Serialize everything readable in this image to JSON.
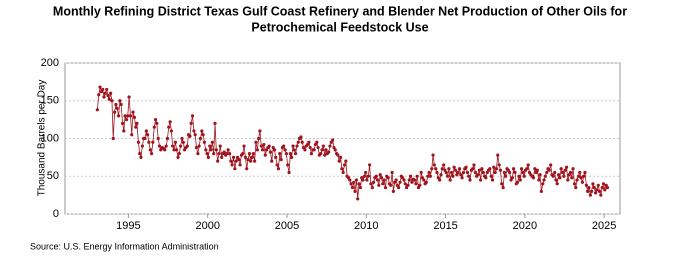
{
  "chart_data": {
    "type": "line",
    "title": [
      "Monthly Refining District Texas Gulf Coast Refinery and Blender Net Production of Other Oils for",
      "Petrochemical Feedstock Use"
    ],
    "ylabel": "Thousand Barrels per Day",
    "source": "Source: U.S. Energy Information Administration",
    "color": "#a0141e",
    "grid": true,
    "xlim": [
      1991,
      2026
    ],
    "xticks": [
      1995,
      2000,
      2005,
      2010,
      2015,
      2020,
      2025
    ],
    "ylim": [
      0,
      200
    ],
    "yticks": [
      0,
      50,
      100,
      150,
      200
    ],
    "x": [
      1993.04,
      1993.13,
      1993.21,
      1993.29,
      1993.38,
      1993.46,
      1993.54,
      1993.63,
      1993.71,
      1993.79,
      1993.88,
      1993.96,
      1994.04,
      1994.13,
      1994.21,
      1994.29,
      1994.38,
      1994.46,
      1994.54,
      1994.63,
      1994.71,
      1994.79,
      1994.88,
      1994.96,
      1995.04,
      1995.13,
      1995.21,
      1995.29,
      1995.38,
      1995.46,
      1995.54,
      1995.63,
      1995.71,
      1995.79,
      1995.88,
      1995.96,
      1996.04,
      1996.13,
      1996.21,
      1996.29,
      1996.38,
      1996.46,
      1996.54,
      1996.63,
      1996.71,
      1996.79,
      1996.88,
      1996.96,
      1997.04,
      1997.13,
      1997.21,
      1997.29,
      1997.38,
      1997.46,
      1997.54,
      1997.63,
      1997.71,
      1997.79,
      1997.88,
      1997.96,
      1998.04,
      1998.13,
      1998.21,
      1998.29,
      1998.38,
      1998.46,
      1998.54,
      1998.63,
      1998.71,
      1998.79,
      1998.88,
      1998.96,
      1999.04,
      1999.13,
      1999.21,
      1999.29,
      1999.38,
      1999.46,
      1999.54,
      1999.63,
      1999.71,
      1999.79,
      1999.88,
      1999.96,
      2000.04,
      2000.13,
      2000.21,
      2000.29,
      2000.38,
      2000.46,
      2000.54,
      2000.63,
      2000.71,
      2000.79,
      2000.88,
      2000.96,
      2001.04,
      2001.13,
      2001.21,
      2001.29,
      2001.38,
      2001.46,
      2001.54,
      2001.63,
      2001.71,
      2001.79,
      2001.88,
      2001.96,
      2002.04,
      2002.13,
      2002.21,
      2002.29,
      2002.38,
      2002.46,
      2002.54,
      2002.63,
      2002.71,
      2002.79,
      2002.88,
      2002.96,
      2003.04,
      2003.13,
      2003.21,
      2003.29,
      2003.38,
      2003.46,
      2003.54,
      2003.63,
      2003.71,
      2003.79,
      2003.88,
      2003.96,
      2004.04,
      2004.13,
      2004.21,
      2004.29,
      2004.38,
      2004.46,
      2004.54,
      2004.63,
      2004.71,
      2004.79,
      2004.88,
      2004.96,
      2005.04,
      2005.13,
      2005.21,
      2005.29,
      2005.38,
      2005.46,
      2005.54,
      2005.63,
      2005.71,
      2005.79,
      2005.88,
      2005.96,
      2006.04,
      2006.13,
      2006.21,
      2006.29,
      2006.38,
      2006.46,
      2006.54,
      2006.63,
      2006.71,
      2006.79,
      2006.88,
      2006.96,
      2007.04,
      2007.13,
      2007.21,
      2007.29,
      2007.38,
      2007.46,
      2007.54,
      2007.63,
      2007.71,
      2007.79,
      2007.88,
      2007.96,
      2008.04,
      2008.13,
      2008.21,
      2008.29,
      2008.38,
      2008.46,
      2008.54,
      2008.63,
      2008.71,
      2008.79,
      2008.88,
      2008.96,
      2009.04,
      2009.13,
      2009.21,
      2009.29,
      2009.38,
      2009.46,
      2009.54,
      2009.63,
      2009.71,
      2009.79,
      2009.88,
      2009.96,
      2010.04,
      2010.13,
      2010.21,
      2010.29,
      2010.38,
      2010.46,
      2010.54,
      2010.63,
      2010.71,
      2010.79,
      2010.88,
      2010.96,
      2011.04,
      2011.13,
      2011.21,
      2011.29,
      2011.38,
      2011.46,
      2011.54,
      2011.63,
      2011.71,
      2011.79,
      2011.88,
      2011.96,
      2012.04,
      2012.13,
      2012.21,
      2012.29,
      2012.38,
      2012.46,
      2012.54,
      2012.63,
      2012.71,
      2012.79,
      2012.88,
      2012.96,
      2013.04,
      2013.13,
      2013.21,
      2013.29,
      2013.38,
      2013.46,
      2013.54,
      2013.63,
      2013.71,
      2013.79,
      2013.88,
      2013.96,
      2014.04,
      2014.13,
      2014.21,
      2014.29,
      2014.38,
      2014.46,
      2014.54,
      2014.63,
      2014.71,
      2014.79,
      2014.88,
      2014.96,
      2015.04,
      2015.13,
      2015.21,
      2015.29,
      2015.38,
      2015.46,
      2015.54,
      2015.63,
      2015.71,
      2015.79,
      2015.88,
      2015.96,
      2016.04,
      2016.13,
      2016.21,
      2016.29,
      2016.38,
      2016.46,
      2016.54,
      2016.63,
      2016.71,
      2016.79,
      2016.88,
      2016.96,
      2017.04,
      2017.13,
      2017.21,
      2017.29,
      2017.38,
      2017.46,
      2017.54,
      2017.63,
      2017.71,
      2017.79,
      2017.88,
      2017.96,
      2018.04,
      2018.13,
      2018.21,
      2018.29,
      2018.38,
      2018.46,
      2018.54,
      2018.63,
      2018.71,
      2018.79,
      2018.88,
      2018.96,
      2019.04,
      2019.13,
      2019.21,
      2019.29,
      2019.38,
      2019.46,
      2019.54,
      2019.63,
      2019.71,
      2019.79,
      2019.88,
      2019.96,
      2020.04,
      2020.13,
      2020.21,
      2020.29,
      2020.38,
      2020.46,
      2020.54,
      2020.63,
      2020.71,
      2020.79,
      2020.88,
      2020.96,
      2021.04,
      2021.13,
      2021.21,
      2021.29,
      2021.38,
      2021.46,
      2021.54,
      2021.63,
      2021.71,
      2021.79,
      2021.88,
      2021.96,
      2022.04,
      2022.13,
      2022.21,
      2022.29,
      2022.38,
      2022.46,
      2022.54,
      2022.63,
      2022.71,
      2022.79,
      2022.88,
      2022.96,
      2023.04,
      2023.13,
      2023.21,
      2023.29,
      2023.38,
      2023.46,
      2023.54,
      2023.63,
      2023.71,
      2023.79,
      2023.88,
      2023.96,
      2024.04,
      2024.13,
      2024.21,
      2024.29,
      2024.38,
      2024.46,
      2024.54,
      2024.63,
      2024.71,
      2024.79,
      2024.88,
      2024.96,
      2025.04,
      2025.13,
      2025.21
    ],
    "values": [
      138,
      158,
      168,
      162,
      165,
      155,
      160,
      165,
      157,
      152,
      160,
      150,
      100,
      135,
      145,
      140,
      130,
      150,
      145,
      120,
      110,
      130,
      125,
      130,
      155,
      130,
      105,
      135,
      128,
      115,
      120,
      95,
      80,
      75,
      90,
      100,
      100,
      110,
      105,
      95,
      85,
      80,
      95,
      115,
      125,
      120,
      100,
      90,
      85,
      88,
      87,
      85,
      90,
      100,
      115,
      122,
      110,
      90,
      85,
      95,
      85,
      75,
      80,
      90,
      100,
      95,
      85,
      88,
      90,
      105,
      103,
      120,
      130,
      110,
      105,
      88,
      80,
      90,
      100,
      110,
      105,
      95,
      85,
      80,
      75,
      90,
      85,
      95,
      80,
      120,
      85,
      70,
      80,
      90,
      75,
      80,
      82,
      78,
      80,
      85,
      80,
      70,
      65,
      75,
      60,
      70,
      75,
      72,
      65,
      78,
      80,
      90,
      75,
      60,
      72,
      80,
      70,
      75,
      80,
      70,
      95,
      85,
      100,
      110,
      90,
      85,
      92,
      78,
      85,
      88,
      90,
      82,
      70,
      88,
      85,
      75,
      65,
      60,
      80,
      72,
      88,
      90,
      85,
      80,
      65,
      55,
      80,
      75,
      90,
      85,
      80,
      90,
      95,
      100,
      102,
      95,
      88,
      85,
      90,
      92,
      95,
      88,
      80,
      85,
      85,
      92,
      95,
      88,
      78,
      80,
      85,
      90,
      78,
      85,
      80,
      82,
      90,
      95,
      98,
      88,
      85,
      80,
      78,
      70,
      75,
      60,
      55,
      65,
      70,
      50,
      48,
      45,
      40,
      35,
      42,
      30,
      45,
      20,
      40,
      35,
      48,
      45,
      50,
      55,
      45,
      50,
      65,
      40,
      35,
      42,
      48,
      50,
      45,
      38,
      52,
      48,
      40,
      45,
      35,
      50,
      48,
      40,
      38,
      55,
      30,
      42,
      45,
      38,
      35,
      42,
      50,
      48,
      45,
      40,
      35,
      38,
      45,
      50,
      42,
      46,
      45,
      40,
      50,
      35,
      38,
      55,
      48,
      45,
      40,
      42,
      50,
      55,
      50,
      60,
      78,
      65,
      60,
      55,
      48,
      45,
      52,
      60,
      65,
      58,
      55,
      50,
      60,
      45,
      55,
      50,
      62,
      58,
      52,
      55,
      60,
      52,
      48,
      55,
      60,
      62,
      55,
      50,
      45,
      58,
      60,
      65,
      55,
      50,
      52,
      58,
      45,
      60,
      55,
      50,
      48,
      55,
      58,
      60,
      50,
      45,
      62,
      55,
      60,
      78,
      65,
      58,
      40,
      35,
      55,
      50,
      60,
      58,
      55,
      45,
      48,
      60,
      55,
      40,
      42,
      50,
      45,
      60,
      55,
      50,
      58,
      60,
      65,
      55,
      52,
      50,
      48,
      60,
      55,
      58,
      45,
      52,
      30,
      40,
      45,
      50,
      55,
      60,
      58,
      65,
      52,
      50,
      55,
      45,
      40,
      52,
      48,
      60,
      55,
      50,
      58,
      62,
      45,
      52,
      55,
      48,
      60,
      40,
      35,
      45,
      50,
      55,
      48,
      42,
      50,
      55,
      38,
      30,
      35,
      25,
      30,
      40,
      35,
      28,
      32,
      38,
      30,
      25,
      35,
      40,
      32,
      38,
      35
    ]
  }
}
